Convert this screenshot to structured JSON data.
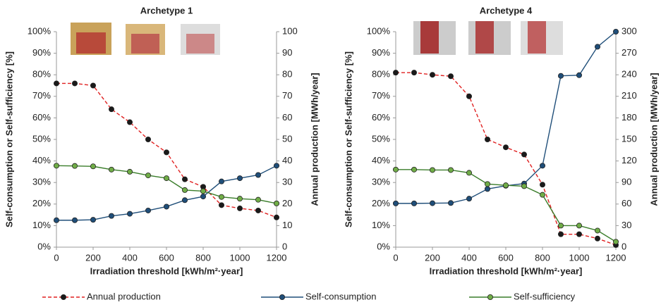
{
  "chart_data": [
    {
      "type": "line",
      "title": "Archetype 1",
      "xlabel": "Irradiation threshold [kWh/m²·year]",
      "ylabel": "Self-consumption or Self-sufficiency [%]",
      "y2label": "Annual production [MWh/year]",
      "x": [
        0,
        100,
        200,
        300,
        400,
        500,
        600,
        700,
        800,
        900,
        1000,
        1100,
        1200
      ],
      "xlim": [
        0,
        1200
      ],
      "xticks": [
        0,
        200,
        400,
        600,
        800,
        1000,
        1200
      ],
      "ylim": [
        0,
        100
      ],
      "yticks": [
        {
          "value": 0,
          "label": "0%"
        },
        {
          "value": 10,
          "label": "10%"
        },
        {
          "value": 20,
          "label": "20%"
        },
        {
          "value": 30,
          "label": "30%"
        },
        {
          "value": 40,
          "label": "40%"
        },
        {
          "value": 50,
          "label": "50%"
        },
        {
          "value": 60,
          "label": "60%"
        },
        {
          "value": 70,
          "label": "70%"
        },
        {
          "value": 80,
          "label": "80%"
        },
        {
          "value": 90,
          "label": "90%"
        },
        {
          "value": 100,
          "label": "100%"
        }
      ],
      "y2lim": [
        0,
        100
      ],
      "y2ticks": [
        0,
        10,
        20,
        30,
        40,
        50,
        60,
        70,
        80,
        90,
        100
      ],
      "series": [
        {
          "name": "Annual production",
          "color": "#e02020",
          "marker_color": "#1a1a1a",
          "line_style": "dashed",
          "axis": "y2",
          "values": [
            76,
            76,
            75,
            64,
            58,
            50,
            44,
            31.5,
            28,
            19.5,
            18,
            17,
            13.8
          ]
        },
        {
          "name": "Self-consumption",
          "color": "#1f4e79",
          "marker_color": "#1f4e79",
          "line_style": "solid",
          "values": [
            12.5,
            12.5,
            12.7,
            14.5,
            15.5,
            17,
            18.8,
            21.8,
            23.5,
            30.5,
            32,
            33.5,
            37.8
          ]
        },
        {
          "name": "Self-sufficiency",
          "color": "#3a7d2a",
          "marker_color": "#70ad47",
          "line_style": "solid",
          "values": [
            37.8,
            37.7,
            37.5,
            36,
            35,
            33.3,
            32,
            26.5,
            26,
            23.3,
            22.5,
            22,
            20.3
          ]
        }
      ]
    },
    {
      "type": "line",
      "title": "Archetype 4",
      "xlabel": "Irradiation threshold [kWh/m²·year]",
      "ylabel": "Self-consumption or Self-sufficiency [%]",
      "y2label": "Annual production [MWh/year]",
      "x": [
        0,
        100,
        200,
        300,
        400,
        500,
        600,
        700,
        800,
        900,
        1000,
        1100,
        1200
      ],
      "xlim": [
        0,
        1200
      ],
      "xticks": [
        0,
        200,
        400,
        600,
        800,
        1000,
        1200
      ],
      "ylim": [
        0,
        100
      ],
      "yticks": [
        {
          "value": 0,
          "label": "0%"
        },
        {
          "value": 10,
          "label": "10%"
        },
        {
          "value": 20,
          "label": "20%"
        },
        {
          "value": 30,
          "label": "30%"
        },
        {
          "value": 40,
          "label": "40%"
        },
        {
          "value": 50,
          "label": "50%"
        },
        {
          "value": 60,
          "label": "60%"
        },
        {
          "value": 70,
          "label": "70%"
        },
        {
          "value": 80,
          "label": "80%"
        },
        {
          "value": 90,
          "label": "90%"
        },
        {
          "value": 100,
          "label": "100%"
        }
      ],
      "y2lim": [
        0,
        300
      ],
      "y2ticks": [
        0,
        30,
        60,
        90,
        120,
        150,
        180,
        210,
        240,
        270,
        300
      ],
      "series": [
        {
          "color": "#e02020",
          "marker_color": "#1a1a1a",
          "line_style": "dashed",
          "axis": "y2",
          "values": [
            243,
            243,
            240,
            238,
            210,
            150,
            139,
            129,
            87,
            18,
            18,
            12,
            3
          ]
        },
        {
          "color": "#1f4e79",
          "marker_color": "#1f4e79",
          "line_style": "solid",
          "values": [
            20.3,
            20.3,
            20.4,
            20.5,
            22.5,
            27,
            28.5,
            29.5,
            37.8,
            79.5,
            79.8,
            93,
            100
          ]
        },
        {
          "color": "#3a7d2a",
          "marker_color": "#70ad47",
          "line_style": "solid",
          "values": [
            36,
            36,
            35.8,
            35.8,
            34.5,
            29.3,
            28.7,
            28.3,
            24.3,
            10,
            10,
            7.7,
            2.5
          ]
        }
      ]
    }
  ]
}
